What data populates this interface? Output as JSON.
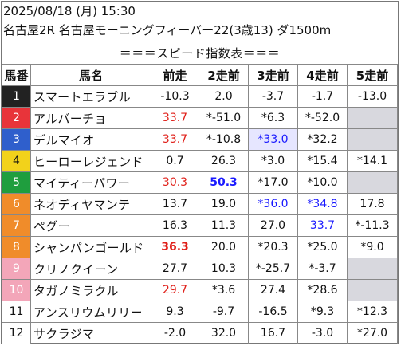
{
  "header": {
    "line1": "2025/08/18 (月) 15:30",
    "line2": "名古屋2R 名古屋モーニングフィーバー22(3歳13) ダ1500m",
    "line3": "＝＝＝スピード指数表＝＝＝"
  },
  "columns": [
    "馬番",
    "馬名",
    "前走",
    "2走前",
    "3走前",
    "4走前",
    "5走前"
  ],
  "colors": {
    "gate": [
      "#ffffff",
      "#222222",
      "#e8343a",
      "#2f5fcc",
      "#f2d21b",
      "#1f9e3e",
      "#f08c2a",
      "#f3a6b9"
    ],
    "red": "#e0201a",
    "blue": "#1a1aff",
    "empty": "#d8d8de"
  },
  "rows": [
    {
      "num": "1",
      "gate": 1,
      "name": "スマートエラブル",
      "v": [
        {
          "t": "-10.3"
        },
        {
          "t": "2.0"
        },
        {
          "t": "-3.7"
        },
        {
          "t": "-1.7"
        },
        {
          "t": "-13.0"
        }
      ]
    },
    {
      "num": "2",
      "gate": 2,
      "name": "アルバーチョ",
      "v": [
        {
          "t": "33.7",
          "c": "red"
        },
        {
          "t": "*-51.0"
        },
        {
          "t": "*6.3"
        },
        {
          "t": "*-52.0"
        },
        {
          "t": "",
          "empty": true
        }
      ]
    },
    {
      "num": "3",
      "gate": 3,
      "name": "デルマイオ",
      "v": [
        {
          "t": "33.7",
          "c": "red"
        },
        {
          "t": "*-10.8"
        },
        {
          "t": "*33.0",
          "c": "blue",
          "bg": true
        },
        {
          "t": "*32.2"
        },
        {
          "t": "",
          "empty": true
        }
      ]
    },
    {
      "num": "4",
      "gate": 4,
      "name": "ヒーローレジェンド",
      "v": [
        {
          "t": "0.7"
        },
        {
          "t": "26.3"
        },
        {
          "t": "*3.0"
        },
        {
          "t": "*15.4"
        },
        {
          "t": "*14.1"
        }
      ]
    },
    {
      "num": "5",
      "gate": 5,
      "name": "マイティーパワー",
      "v": [
        {
          "t": "30.3",
          "c": "red"
        },
        {
          "t": "50.3",
          "c": "blue",
          "b": true
        },
        {
          "t": "*17.0"
        },
        {
          "t": "*10.0"
        },
        {
          "t": "",
          "empty": true
        }
      ]
    },
    {
      "num": "6",
      "gate": 6,
      "name": "ネオディヤマンテ",
      "v": [
        {
          "t": "13.7"
        },
        {
          "t": "19.0"
        },
        {
          "t": "*36.0",
          "c": "blue"
        },
        {
          "t": "*34.8",
          "c": "blue"
        },
        {
          "t": "17.8"
        }
      ]
    },
    {
      "num": "7",
      "gate": 6,
      "name": "ペグー",
      "v": [
        {
          "t": "16.3"
        },
        {
          "t": "11.3"
        },
        {
          "t": "27.0"
        },
        {
          "t": "33.7",
          "c": "blue"
        },
        {
          "t": "*-11.3"
        }
      ]
    },
    {
      "num": "8",
      "gate": 6,
      "name": "シャンパンゴールド",
      "v": [
        {
          "t": "36.3",
          "c": "red",
          "b": true
        },
        {
          "t": "20.0"
        },
        {
          "t": "*20.3"
        },
        {
          "t": "*25.0"
        },
        {
          "t": "*9.0"
        }
      ]
    },
    {
      "num": "9",
      "gate": 7,
      "name": "クリノクイーン",
      "v": [
        {
          "t": "27.7"
        },
        {
          "t": "10.3"
        },
        {
          "t": "*-25.7"
        },
        {
          "t": "*-3.7"
        },
        {
          "t": "",
          "empty": true
        }
      ]
    },
    {
      "num": "10",
      "gate": 7,
      "name": "タガノミラクル",
      "v": [
        {
          "t": "29.7",
          "c": "red"
        },
        {
          "t": "*3.6"
        },
        {
          "t": "27.4"
        },
        {
          "t": "*28.6"
        },
        {
          "t": "",
          "empty": true
        }
      ]
    },
    {
      "num": "11",
      "gate": 8,
      "name": "アンスリウムリリー",
      "v": [
        {
          "t": "9.3"
        },
        {
          "t": "-9.7"
        },
        {
          "t": "-16.5"
        },
        {
          "t": "*9.3"
        },
        {
          "t": "*12.3"
        }
      ]
    },
    {
      "num": "12",
      "gate": 8,
      "name": "サクラジマ",
      "v": [
        {
          "t": "-2.0"
        },
        {
          "t": "32.0"
        },
        {
          "t": "16.7"
        },
        {
          "t": "-3.0"
        },
        {
          "t": "*27.0"
        }
      ]
    }
  ]
}
